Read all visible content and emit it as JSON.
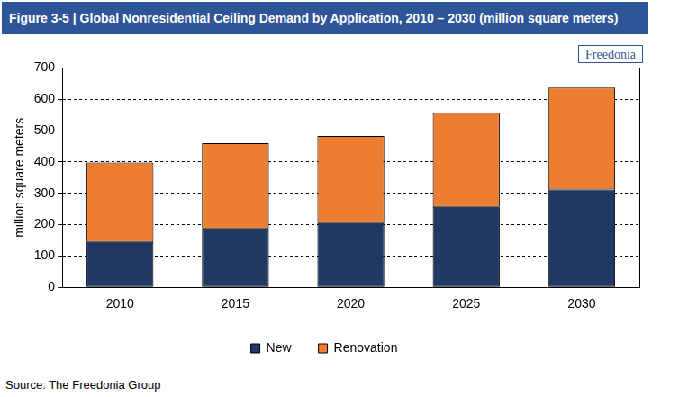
{
  "chart_data": {
    "type": "bar",
    "title": "Figure 3-5 | Global Nonresidential Ceiling Demand by Application, 2010 – 2030 (million square meters)",
    "logo": "Freedonia",
    "source": "Source: The Freedonia Group",
    "y_label": "million square meters",
    "categories": [
      "2010",
      "2015",
      "2020",
      "2025",
      "2030"
    ],
    "series": [
      {
        "name": "New",
        "color": "#1F3864",
        "values": [
          145,
          188,
          205,
          257,
          312
        ]
      },
      {
        "name": "Renovation",
        "color": "#ED7D31",
        "values": [
          253,
          272,
          278,
          300,
          325
        ]
      }
    ],
    "stacked": true,
    "ylim": [
      0,
      700
    ],
    "yticks": [
      0,
      100,
      200,
      300,
      400,
      500,
      600,
      700
    ],
    "grid": true,
    "legend": "bottom"
  }
}
